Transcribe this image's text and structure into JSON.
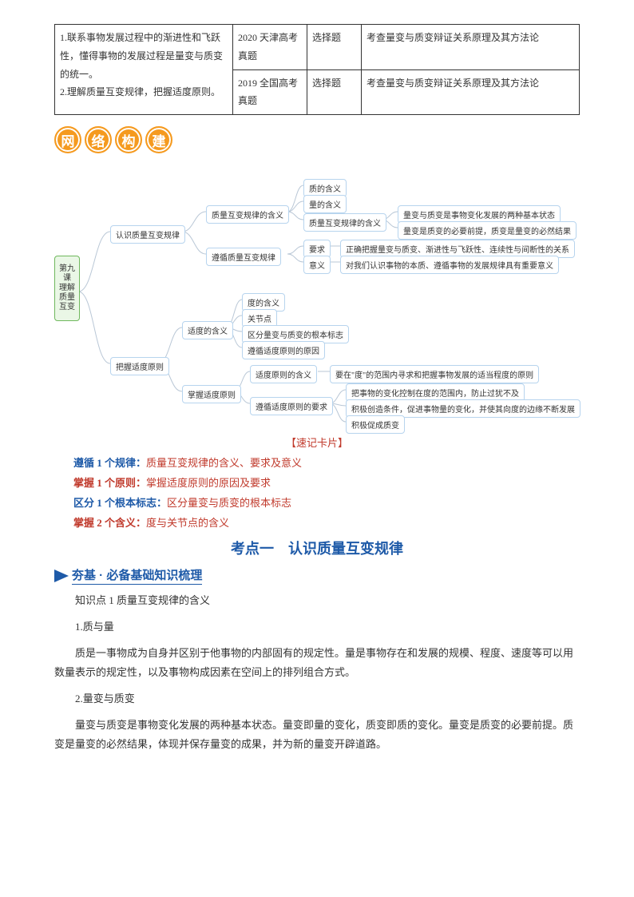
{
  "table": {
    "col1_lines": "1.联系事物发展过程中的渐进性和飞跃性，懂得事物的发展过程是量变与质变的统一。\n2.理解质量互变规律，把握适度原则。",
    "rows": [
      {
        "c2": "2020 天津高考真题",
        "c3": "选择题",
        "c4": "考查量变与质变辩证关系原理及其方法论"
      },
      {
        "c2": "2019 全国高考真题",
        "c3": "选择题",
        "c4": "考查量变与质变辩证关系原理及其方法论"
      }
    ]
  },
  "badge": [
    "网",
    "络",
    "构",
    "建"
  ],
  "mindmap": {
    "root": "第九课 理解质量互变",
    "n1": "认识质量互变规律",
    "n2": "把握适度原则",
    "n1a": "质量互变规律的含义",
    "n1b": "遵循质量互变规律",
    "n1a1": "质的含义",
    "n1a2": "量的含义",
    "n1a3": "质量互变规律的含义",
    "n1a3a": "量变与质变是事物变化发展的两种基本状态",
    "n1a3b": "量变是质变的必要前提，质变是量变的必然结果",
    "n1b1": "要求",
    "n1b2": "意义",
    "n1b1a": "正确把握量变与质变、渐进性与飞跃性、连续性与间断性的关系",
    "n1b2a": "对我们认识事物的本质、遵循事物的发展规律具有重要意义",
    "n2a": "适度的含义",
    "n2b": "掌握适度原则",
    "n2a1": "度的含义",
    "n2a2": "关节点",
    "n2a3": "区分量变与质变的根本标志",
    "n2a4": "遵循适度原则的原因",
    "n2b1": "适度原则的含义",
    "n2b1a": "要在\"度\"的范围内寻求和把握事物发展的适当程度的原则",
    "n2b2": "遵循适度原则的要求",
    "n2b2a": "把事物的变化控制在度的范围内，防止过犹不及",
    "n2b2b": "积极创造条件，促进事物量的变化，并使其向度的边缘不断发展",
    "n2b2c": "积极促成质变"
  },
  "memo": {
    "title": "【速记卡片】",
    "lines": [
      {
        "label": "遵循 1 个规律：",
        "text": "质量互变规律的含义、要求及意义",
        "color": "#1e5aa8"
      },
      {
        "label": "掌握 1 个原则：",
        "text": "掌握适度原则的原因及要求",
        "color": "#c0392b"
      },
      {
        "label": "区分 1 个根本标志：",
        "text": "区分量变与质变的根本标志",
        "color": "#1e5aa8"
      },
      {
        "label": "掌握 2 个含义：",
        "text": "度与关节点的含义",
        "color": "#c0392b"
      }
    ]
  },
  "kaodian": "考点一　认识质量互变规律",
  "hangji": "夯基 · 必备基础知识梳理",
  "body": {
    "p1": "知识点 1 质量互变规律的含义",
    "p2": "1.质与量",
    "p3": "质是一事物成为自身并区别于他事物的内部固有的规定性。量是事物存在和发展的规模、程度、速度等可以用数量表示的规定性，以及事物构成因素在空间上的排列组合方式。",
    "p4": "2.量变与质变",
    "p5": "量变与质变是事物变化发展的两种基本状态。量变即量的变化，质变即质的变化。量变是质变的必要前提。质变是量变的必然结果，体现并保存量变的成果，并为新的量变开辟道路。"
  },
  "colors": {
    "mm_line": "#b9c7d6"
  }
}
